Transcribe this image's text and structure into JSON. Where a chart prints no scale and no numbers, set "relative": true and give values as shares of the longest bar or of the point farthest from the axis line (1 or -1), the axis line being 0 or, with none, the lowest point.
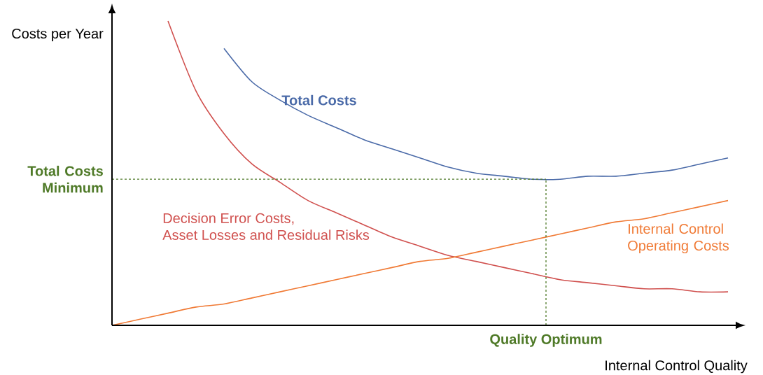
{
  "chart_data": {
    "type": "line",
    "relative": true,
    "marker": "none",
    "line_style": "solid",
    "xlabel": "Internal Control Quality",
    "ylabel": "Costs per Year",
    "categories": [
      null,
      null,
      null,
      null,
      null,
      null,
      null,
      null,
      null,
      null,
      null,
      null,
      null,
      null,
      null,
      null,
      null,
      null,
      null,
      null,
      null,
      null,
      null
    ],
    "series": [
      {
        "name": "Total Costs",
        "color": "#4a6aa8",
        "values": [
          null,
          null,
          null,
          null,
          0.91,
          0.8,
          0.74,
          0.69,
          0.65,
          0.61,
          0.58,
          0.55,
          0.52,
          0.5,
          0.49,
          0.48,
          0.48,
          0.49,
          0.49,
          0.5,
          0.51,
          0.53,
          0.55
        ]
      },
      {
        "name": "Decision Error Costs, Asset Losses and Residual Risks",
        "color": "#d0504e",
        "values": [
          null,
          null,
          1.0,
          0.77,
          0.63,
          0.53,
          0.47,
          0.41,
          0.37,
          0.33,
          0.29,
          0.26,
          0.23,
          0.21,
          0.19,
          0.17,
          0.15,
          0.14,
          0.13,
          0.12,
          0.12,
          0.11,
          0.11
        ]
      },
      {
        "name": "Internal Control Operating Costs",
        "color": "#f07a35",
        "values": [
          0,
          0.02,
          0.04,
          0.06,
          0.07,
          0.09,
          0.11,
          0.13,
          0.15,
          0.17,
          0.19,
          0.21,
          0.22,
          0.24,
          0.26,
          0.28,
          0.3,
          0.32,
          0.34,
          0.35,
          0.37,
          0.39,
          0.41
        ]
      }
    ],
    "ref_lines": [
      {
        "axis": "y",
        "value": 0.48,
        "label": "Total Costs Minimum",
        "color": "#4f7a28",
        "line_style": "dashed"
      }
    ],
    "annotations": [
      "Quality Optimum"
    ]
  }
}
